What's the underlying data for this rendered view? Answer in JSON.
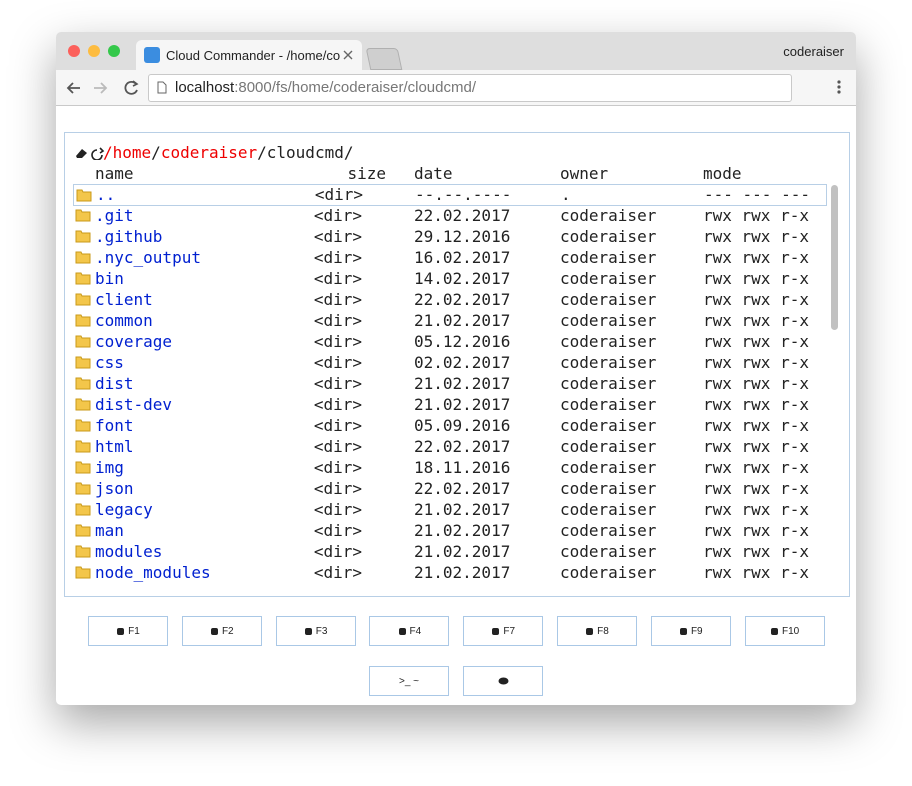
{
  "window": {
    "tab_title": "Cloud Commander - /home/co",
    "profile": "coderaiser",
    "url_host": "localhost",
    "url_path": ":8000/fs/home/coderaiser/cloudcmd/"
  },
  "panel": {
    "path": [
      {
        "text": "/home",
        "link": true
      },
      {
        "text": "/",
        "link": false
      },
      {
        "text": "coderaiser",
        "link": true
      },
      {
        "text": "/cloudcmd/",
        "link": false
      }
    ],
    "columns": [
      "name",
      "size",
      "date",
      "owner",
      "mode"
    ],
    "rows": [
      [
        "..",
        "<dir>",
        "--.--.----",
        ".",
        "--- --- ---"
      ],
      [
        ".git",
        "<dir>",
        "22.02.2017",
        "coderaiser",
        "rwx rwx r-x"
      ],
      [
        ".github",
        "<dir>",
        "29.12.2016",
        "coderaiser",
        "rwx rwx r-x"
      ],
      [
        ".nyc_output",
        "<dir>",
        "16.02.2017",
        "coderaiser",
        "rwx rwx r-x"
      ],
      [
        "bin",
        "<dir>",
        "14.02.2017",
        "coderaiser",
        "rwx rwx r-x"
      ],
      [
        "client",
        "<dir>",
        "22.02.2017",
        "coderaiser",
        "rwx rwx r-x"
      ],
      [
        "common",
        "<dir>",
        "21.02.2017",
        "coderaiser",
        "rwx rwx r-x"
      ],
      [
        "coverage",
        "<dir>",
        "05.12.2016",
        "coderaiser",
        "rwx rwx r-x"
      ],
      [
        "css",
        "<dir>",
        "02.02.2017",
        "coderaiser",
        "rwx rwx r-x"
      ],
      [
        "dist",
        "<dir>",
        "21.02.2017",
        "coderaiser",
        "rwx rwx r-x"
      ],
      [
        "dist-dev",
        "<dir>",
        "21.02.2017",
        "coderaiser",
        "rwx rwx r-x"
      ],
      [
        "font",
        "<dir>",
        "05.09.2016",
        "coderaiser",
        "rwx rwx r-x"
      ],
      [
        "html",
        "<dir>",
        "22.02.2017",
        "coderaiser",
        "rwx rwx r-x"
      ],
      [
        "img",
        "<dir>",
        "18.11.2016",
        "coderaiser",
        "rwx rwx r-x"
      ],
      [
        "json",
        "<dir>",
        "22.02.2017",
        "coderaiser",
        "rwx rwx r-x"
      ],
      [
        "legacy",
        "<dir>",
        "21.02.2017",
        "coderaiser",
        "rwx rwx r-x"
      ],
      [
        "man",
        "<dir>",
        "21.02.2017",
        "coderaiser",
        "rwx rwx r-x"
      ],
      [
        "modules",
        "<dir>",
        "21.02.2017",
        "coderaiser",
        "rwx rwx r-x"
      ],
      [
        "node_modules",
        "<dir>",
        "21.02.2017",
        "coderaiser",
        "rwx rwx r-x"
      ]
    ]
  },
  "buttons": [
    "F1",
    "F2",
    "F3",
    "F4",
    "F7",
    "F8",
    "F9",
    "F10"
  ],
  "extra_buttons": [
    ">_ ~"
  ]
}
